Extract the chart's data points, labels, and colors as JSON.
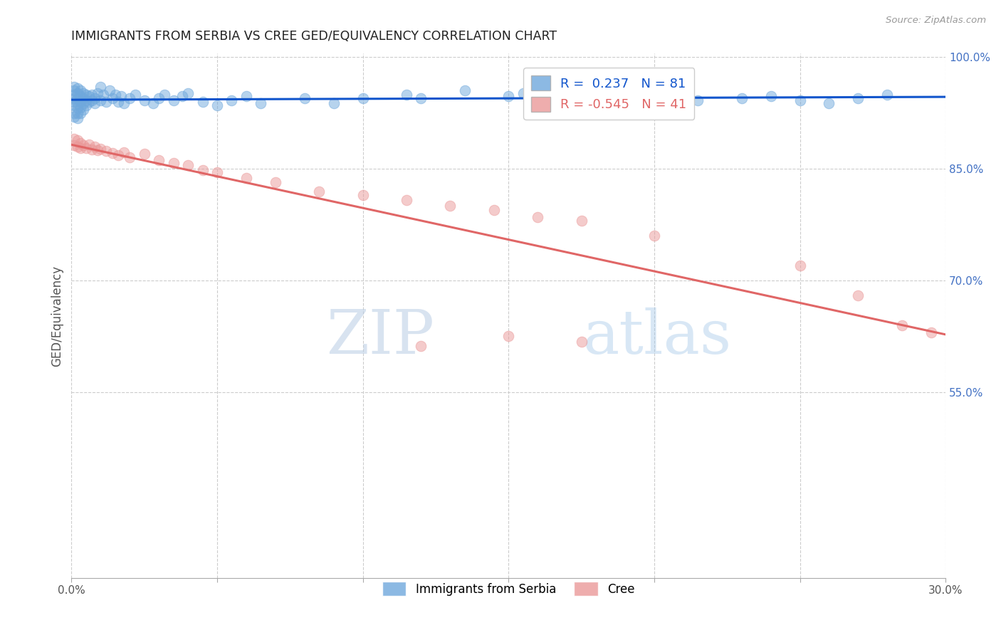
{
  "title": "IMMIGRANTS FROM SERBIA VS CREE GED/EQUIVALENCY CORRELATION CHART",
  "source": "Source: ZipAtlas.com",
  "ylabel_label": "GED/Equivalency",
  "x_min": 0.0,
  "x_max": 0.3,
  "y_min": 0.3,
  "y_max": 1.005,
  "x_tick_positions": [
    0.0,
    0.05,
    0.1,
    0.15,
    0.2,
    0.25,
    0.3
  ],
  "x_tick_labels": [
    "0.0%",
    "",
    "",
    "",
    "",
    "",
    "30.0%"
  ],
  "y_tick_positions": [
    0.55,
    0.7,
    0.85,
    1.0
  ],
  "y_tick_labels": [
    "55.0%",
    "70.0%",
    "85.0%",
    "100.0%"
  ],
  "serbia_color": "#6fa8dc",
  "cree_color": "#ea9999",
  "serbia_line_color": "#1155cc",
  "cree_line_color": "#e06666",
  "serbia_R": 0.237,
  "serbia_N": 81,
  "cree_R": -0.545,
  "cree_N": 41,
  "serbia_x": [
    0.001,
    0.001,
    0.001,
    0.001,
    0.001,
    0.001,
    0.001,
    0.001,
    0.002,
    0.002,
    0.002,
    0.002,
    0.002,
    0.002,
    0.002,
    0.003,
    0.003,
    0.003,
    0.003,
    0.003,
    0.004,
    0.004,
    0.004,
    0.004,
    0.005,
    0.005,
    0.005,
    0.006,
    0.006,
    0.007,
    0.007,
    0.008,
    0.008,
    0.009,
    0.01,
    0.01,
    0.011,
    0.012,
    0.013,
    0.014,
    0.015,
    0.016,
    0.017,
    0.018,
    0.02,
    0.022,
    0.025,
    0.028,
    0.03,
    0.032,
    0.035,
    0.038,
    0.04,
    0.045,
    0.05,
    0.055,
    0.06,
    0.065,
    0.08,
    0.09,
    0.1,
    0.115,
    0.12,
    0.135,
    0.15,
    0.155,
    0.17,
    0.175,
    0.18,
    0.185,
    0.19,
    0.195,
    0.2,
    0.21,
    0.215,
    0.23,
    0.24,
    0.25,
    0.26,
    0.27,
    0.28
  ],
  "serbia_y": [
    0.96,
    0.955,
    0.95,
    0.945,
    0.94,
    0.935,
    0.925,
    0.92,
    0.958,
    0.952,
    0.945,
    0.938,
    0.932,
    0.925,
    0.918,
    0.955,
    0.948,
    0.94,
    0.932,
    0.925,
    0.952,
    0.945,
    0.938,
    0.93,
    0.95,
    0.942,
    0.935,
    0.948,
    0.94,
    0.95,
    0.942,
    0.945,
    0.938,
    0.952,
    0.96,
    0.942,
    0.95,
    0.94,
    0.955,
    0.945,
    0.95,
    0.94,
    0.948,
    0.938,
    0.945,
    0.95,
    0.942,
    0.938,
    0.945,
    0.95,
    0.942,
    0.948,
    0.952,
    0.94,
    0.935,
    0.942,
    0.948,
    0.938,
    0.945,
    0.938,
    0.945,
    0.95,
    0.945,
    0.955,
    0.948,
    0.952,
    0.942,
    0.948,
    0.945,
    0.948,
    0.942,
    0.938,
    0.945,
    0.95,
    0.942,
    0.945,
    0.948,
    0.942,
    0.938,
    0.945,
    0.95
  ],
  "cree_x": [
    0.001,
    0.001,
    0.002,
    0.002,
    0.003,
    0.003,
    0.004,
    0.005,
    0.006,
    0.007,
    0.008,
    0.009,
    0.01,
    0.012,
    0.014,
    0.016,
    0.018,
    0.02,
    0.025,
    0.03,
    0.035,
    0.04,
    0.045,
    0.05,
    0.06,
    0.07,
    0.085,
    0.1,
    0.115,
    0.13,
    0.145,
    0.16,
    0.175,
    0.2,
    0.25,
    0.27,
    0.285,
    0.295,
    0.15,
    0.175,
    0.12
  ],
  "cree_y": [
    0.89,
    0.882,
    0.888,
    0.88,
    0.885,
    0.878,
    0.882,
    0.878,
    0.883,
    0.876,
    0.88,
    0.875,
    0.877,
    0.874,
    0.871,
    0.868,
    0.872,
    0.865,
    0.87,
    0.862,
    0.858,
    0.855,
    0.848,
    0.845,
    0.838,
    0.832,
    0.82,
    0.815,
    0.808,
    0.8,
    0.795,
    0.785,
    0.78,
    0.76,
    0.72,
    0.68,
    0.64,
    0.63,
    0.625,
    0.618,
    0.612
  ],
  "watermark_zip": "ZIP",
  "watermark_atlas": "atlas",
  "background_color": "#ffffff",
  "grid_color": "#cccccc"
}
